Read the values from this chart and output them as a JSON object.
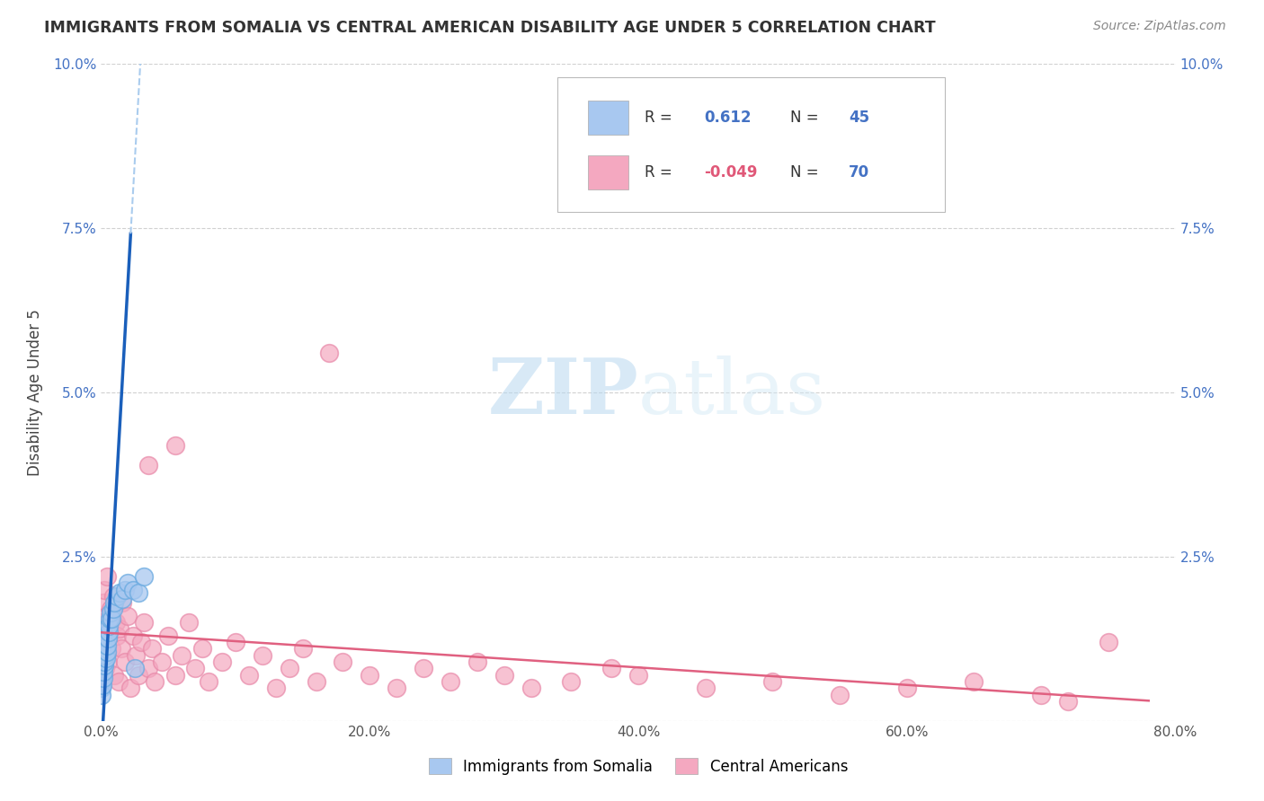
{
  "title": "IMMIGRANTS FROM SOMALIA VS CENTRAL AMERICAN DISABILITY AGE UNDER 5 CORRELATION CHART",
  "source": "Source: ZipAtlas.com",
  "ylabel": "Disability Age Under 5",
  "xlim": [
    0.0,
    0.8
  ],
  "ylim": [
    0.0,
    0.1
  ],
  "somalia_R": 0.612,
  "somalia_N": 45,
  "central_R": -0.049,
  "central_N": 70,
  "somalia_color": "#a8c8f0",
  "somalia_edge_color": "#6aaae0",
  "central_color": "#f4a8c0",
  "central_edge_color": "#e888a8",
  "somalia_line_color": "#1a5fbb",
  "central_line_color": "#e06080",
  "dashed_line_color": "#aaccee",
  "watermark_zip": "ZIP",
  "watermark_atlas": "atlas",
  "watermark_color": "#cce4f5",
  "background_color": "#ffffff",
  "grid_color": "#cccccc",
  "tick_color": "#4472c4",
  "legend_somalia_label": "Immigrants from Somalia",
  "legend_central_label": "Central Americans",
  "somalia_x": [
    0.0002,
    0.0003,
    0.0004,
    0.0005,
    0.0006,
    0.0007,
    0.0008,
    0.0009,
    0.001,
    0.0011,
    0.0012,
    0.0013,
    0.0014,
    0.0015,
    0.0016,
    0.0018,
    0.002,
    0.0022,
    0.0024,
    0.0026,
    0.0028,
    0.003,
    0.0032,
    0.0035,
    0.0038,
    0.004,
    0.0043,
    0.0046,
    0.005,
    0.0055,
    0.006,
    0.0065,
    0.007,
    0.008,
    0.009,
    0.01,
    0.012,
    0.014,
    0.016,
    0.018,
    0.02,
    0.024,
    0.028,
    0.032,
    0.025
  ],
  "somalia_y": [
    0.005,
    0.008,
    0.006,
    0.01,
    0.004,
    0.012,
    0.007,
    0.009,
    0.0055,
    0.013,
    0.008,
    0.011,
    0.0065,
    0.0095,
    0.0075,
    0.0105,
    0.0115,
    0.0085,
    0.0125,
    0.009,
    0.01,
    0.011,
    0.012,
    0.013,
    0.0095,
    0.014,
    0.0105,
    0.0115,
    0.0125,
    0.0135,
    0.0145,
    0.0155,
    0.0165,
    0.0155,
    0.017,
    0.018,
    0.019,
    0.0195,
    0.0185,
    0.02,
    0.021,
    0.02,
    0.0195,
    0.022,
    0.008
  ],
  "central_x": [
    0.0005,
    0.001,
    0.0015,
    0.002,
    0.0025,
    0.003,
    0.0035,
    0.004,
    0.0045,
    0.005,
    0.006,
    0.007,
    0.008,
    0.009,
    0.01,
    0.011,
    0.012,
    0.013,
    0.014,
    0.015,
    0.016,
    0.018,
    0.02,
    0.022,
    0.024,
    0.026,
    0.028,
    0.03,
    0.032,
    0.035,
    0.038,
    0.04,
    0.045,
    0.05,
    0.055,
    0.06,
    0.065,
    0.07,
    0.075,
    0.08,
    0.09,
    0.1,
    0.11,
    0.12,
    0.13,
    0.14,
    0.15,
    0.16,
    0.18,
    0.2,
    0.22,
    0.24,
    0.26,
    0.28,
    0.3,
    0.32,
    0.35,
    0.38,
    0.4,
    0.45,
    0.5,
    0.55,
    0.6,
    0.65,
    0.7,
    0.72,
    0.17,
    0.055,
    0.035,
    0.75
  ],
  "central_y": [
    0.015,
    0.012,
    0.018,
    0.01,
    0.02,
    0.008,
    0.016,
    0.014,
    0.022,
    0.009,
    0.013,
    0.017,
    0.011,
    0.019,
    0.007,
    0.015,
    0.013,
    0.006,
    0.014,
    0.011,
    0.018,
    0.009,
    0.016,
    0.005,
    0.013,
    0.01,
    0.007,
    0.012,
    0.015,
    0.008,
    0.011,
    0.006,
    0.009,
    0.013,
    0.007,
    0.01,
    0.015,
    0.008,
    0.011,
    0.006,
    0.009,
    0.012,
    0.007,
    0.01,
    0.005,
    0.008,
    0.011,
    0.006,
    0.009,
    0.007,
    0.005,
    0.008,
    0.006,
    0.009,
    0.007,
    0.005,
    0.006,
    0.008,
    0.007,
    0.005,
    0.006,
    0.004,
    0.005,
    0.006,
    0.004,
    0.003,
    0.056,
    0.042,
    0.039,
    0.012
  ]
}
